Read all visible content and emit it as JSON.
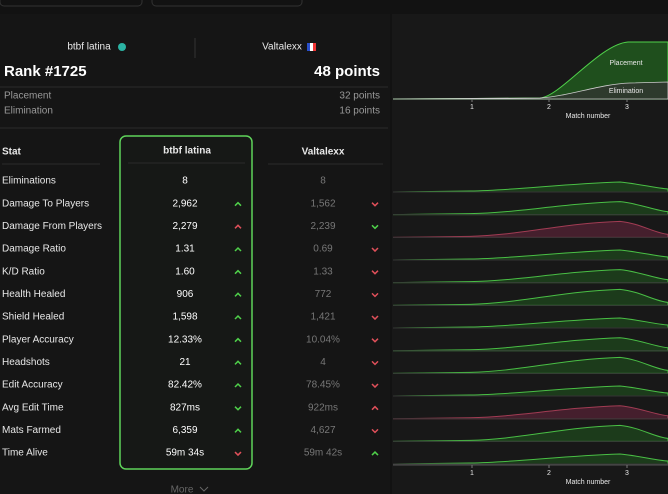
{
  "players": [
    {
      "name": "btbf latina"
    },
    {
      "name": "Valtalexx"
    }
  ],
  "rank": "Rank #1725",
  "points": "48 points",
  "breakdown": [
    {
      "label": "Placement",
      "value": "32 points"
    },
    {
      "label": "Elimination",
      "value": "16 points"
    }
  ],
  "table": {
    "header": "Stat",
    "rows": [
      {
        "stat": "Eliminations",
        "values": [
          "8",
          "8"
        ],
        "arrows": [
          null,
          null
        ],
        "better": null
      },
      {
        "stat": "Damage To Players",
        "values": [
          "2,962",
          "1,562"
        ],
        "arrows": [
          "up",
          "down"
        ],
        "better": 0
      },
      {
        "stat": "Damage From Players",
        "values": [
          "2,279",
          "2,239"
        ],
        "arrows": [
          "up",
          "down"
        ],
        "better": 1
      },
      {
        "stat": "Damage Ratio",
        "values": [
          "1.31",
          "0.69"
        ],
        "arrows": [
          "up",
          "down"
        ],
        "better": 0
      },
      {
        "stat": "K/D Ratio",
        "values": [
          "1.60",
          "1.33"
        ],
        "arrows": [
          "up",
          "down"
        ],
        "better": 0
      },
      {
        "stat": "Health Healed",
        "values": [
          "906",
          "772"
        ],
        "arrows": [
          "up",
          "down"
        ],
        "better": 0
      },
      {
        "stat": "Shield Healed",
        "values": [
          "1,598",
          "1,421"
        ],
        "arrows": [
          "up",
          "down"
        ],
        "better": 0
      },
      {
        "stat": "Player Accuracy",
        "values": [
          "12.33%",
          "10.04%"
        ],
        "arrows": [
          "up",
          "down"
        ],
        "better": 0
      },
      {
        "stat": "Headshots",
        "values": [
          "21",
          "4"
        ],
        "arrows": [
          "up",
          "down"
        ],
        "better": 0
      },
      {
        "stat": "Edit Accuracy",
        "values": [
          "82.42%",
          "78.45%"
        ],
        "arrows": [
          "up",
          "down"
        ],
        "better": 0
      },
      {
        "stat": "Avg Edit Time",
        "values": [
          "827ms",
          "922ms"
        ],
        "arrows": [
          "down",
          "up"
        ],
        "better": 0
      },
      {
        "stat": "Mats Farmed",
        "values": [
          "6,359",
          "4,627"
        ],
        "arrows": [
          "up",
          "down"
        ],
        "better": 0
      },
      {
        "stat": "Time Alive",
        "values": [
          "59m 34s",
          "59m 42s"
        ],
        "arrows": [
          "down",
          "up"
        ],
        "better": 1
      }
    ]
  },
  "more": "More",
  "top_chart": {
    "series_labels": [
      "Placement",
      "Elimination"
    ],
    "xticks": [
      1,
      2,
      3
    ],
    "xlabel": "Match number"
  },
  "bottom_chart": {
    "xticks": [
      1,
      2,
      3
    ],
    "xlabel": "Match number"
  }
}
